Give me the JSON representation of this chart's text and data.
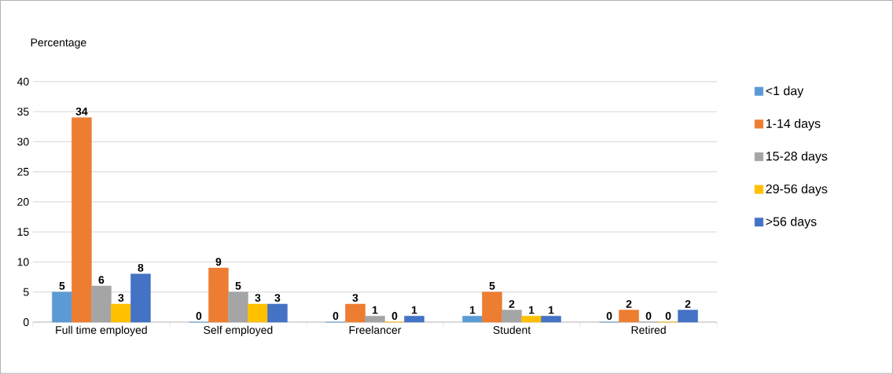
{
  "chart_data": {
    "type": "bar",
    "ylabel": "Percentage",
    "categories": [
      "Full time employed",
      "Self employed",
      "Freelancer",
      "Student",
      "Retired"
    ],
    "series": [
      {
        "name": "<1 day",
        "color": "#5b9bd5",
        "values": [
          5,
          0,
          0,
          1,
          0
        ]
      },
      {
        "name": "1-14 days",
        "color": "#ed7d31",
        "values": [
          34,
          9,
          3,
          5,
          2
        ]
      },
      {
        "name": "15-28 days",
        "color": "#a5a5a5",
        "values": [
          6,
          5,
          1,
          2,
          0
        ]
      },
      {
        "name": "29-56 days",
        "color": "#ffc000",
        "values": [
          3,
          3,
          0,
          1,
          0
        ]
      },
      {
        "name": ">56 days",
        "color": "#4472c4",
        "values": [
          8,
          3,
          1,
          1,
          2
        ]
      }
    ],
    "ylim": [
      0,
      40
    ],
    "yticks": [
      0,
      5,
      10,
      15,
      20,
      25,
      30,
      35,
      40
    ],
    "grid": "y",
    "legend": "right",
    "data_labels": true
  }
}
